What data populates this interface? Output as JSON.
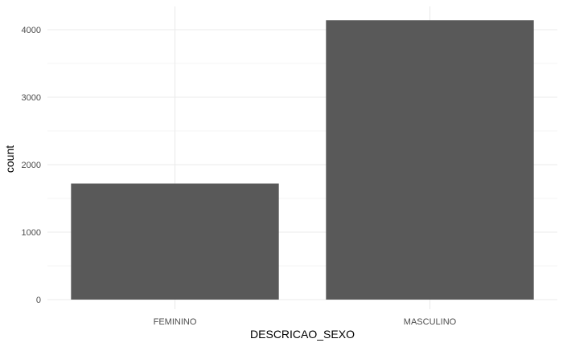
{
  "chart_data": {
    "type": "bar",
    "categories": [
      "FEMININO",
      "MASCULINO"
    ],
    "values": [
      1720,
      4140
    ],
    "title": "",
    "xlabel": "DESCRICAO_SEXO",
    "ylabel": "count",
    "ylim": [
      0,
      4200
    ],
    "yticks": [
      "0",
      "1000",
      "2000",
      "3000",
      "4000"
    ],
    "grid": true,
    "legend": "none",
    "colors": {
      "bar": "#595959",
      "grid_major": "#ebebeb",
      "grid_minor": "#f5f5f5",
      "tick_text": "#4d4d4d",
      "title_text": "#000000"
    }
  }
}
